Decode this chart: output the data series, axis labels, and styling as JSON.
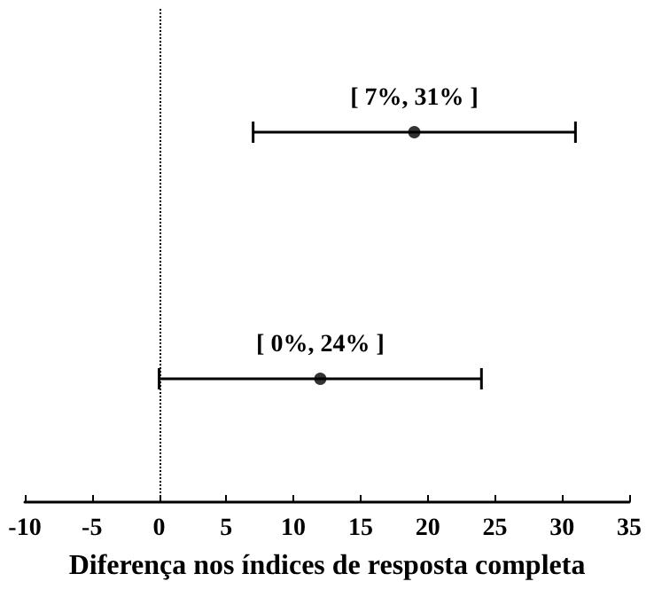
{
  "chart_data": {
    "type": "scatter",
    "orientation": "horizontal",
    "xlabel": "Diferença nos índices de resposta completa",
    "categories": [
      null,
      null
    ],
    "values": [
      19,
      12
    ],
    "errors": [
      [
        7,
        31
      ],
      [
        0,
        24
      ]
    ],
    "color": "#000000",
    "marker": "circle",
    "grid": false,
    "tick_labels": "x",
    "xlim": [
      -10,
      35
    ],
    "xticks": [
      -10,
      -5,
      0,
      5,
      10,
      15,
      20,
      25,
      30,
      35
    ],
    "ref_lines": [
      {
        "axis": "x",
        "value": 0,
        "line_style": "dotted",
        "color": "#000000"
      }
    ],
    "annotations": [
      "[ 7%, 31% ]",
      "[ 0%, 24% ]"
    ]
  }
}
